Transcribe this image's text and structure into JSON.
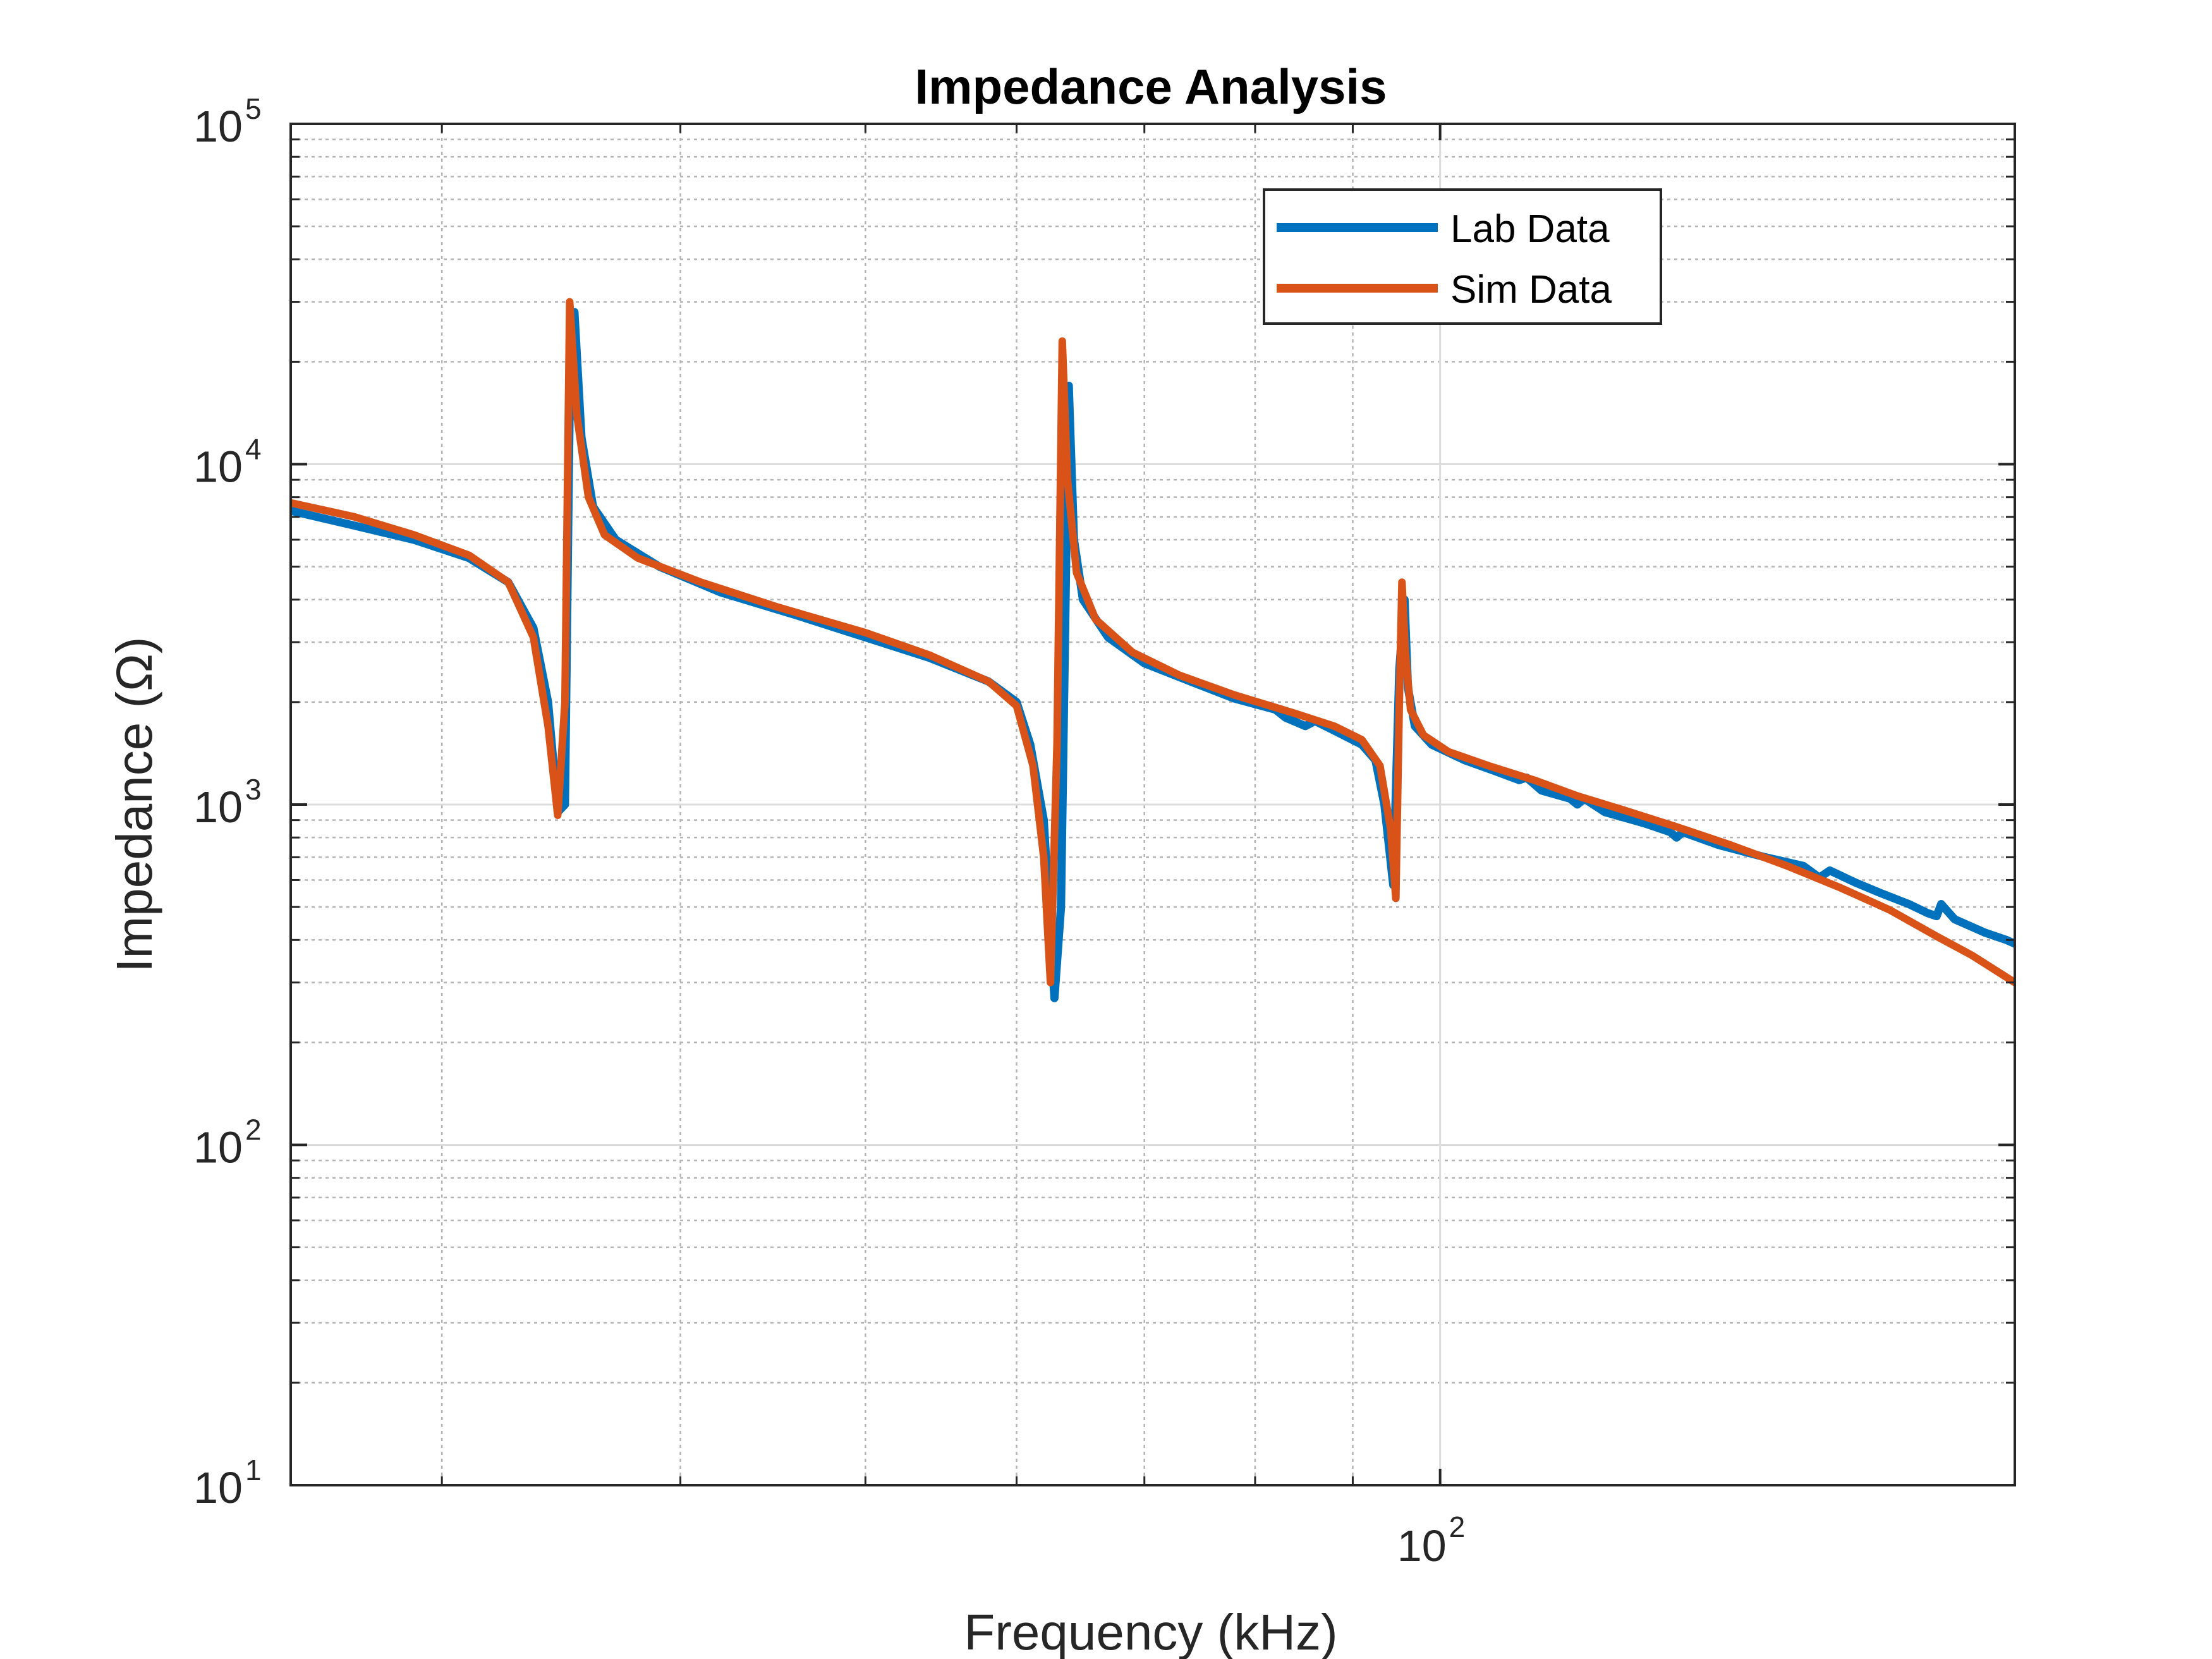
{
  "chart_data": {
    "type": "line",
    "title": "Impedance Analysis",
    "xlabel": "Frequency (kHz)",
    "ylabel": "Impedance (Ω)",
    "xscale": "log",
    "yscale": "log",
    "xlim": [
      25,
      200
    ],
    "ylim": [
      10,
      100000
    ],
    "grid": true,
    "minor_grid": true,
    "legend_position": "top-right",
    "x_ticks": [
      {
        "value": 100,
        "base": "10",
        "exp": "2"
      }
    ],
    "y_ticks": [
      {
        "value": 10,
        "base": "10",
        "exp": "1"
      },
      {
        "value": 100,
        "base": "10",
        "exp": "2"
      },
      {
        "value": 1000,
        "base": "10",
        "exp": "3"
      },
      {
        "value": 10000,
        "base": "10",
        "exp": "4"
      },
      {
        "value": 100000,
        "base": "10",
        "exp": "5"
      }
    ],
    "series": [
      {
        "name": "Lab Data",
        "color": "#0072BD",
        "points": [
          [
            25,
            7300
          ],
          [
            27,
            6600
          ],
          [
            29,
            6000
          ],
          [
            31,
            5300
          ],
          [
            32.5,
            4500
          ],
          [
            33.5,
            3300
          ],
          [
            34.1,
            2000
          ],
          [
            34.5,
            950
          ],
          [
            34.8,
            1000
          ],
          [
            35.0,
            15000
          ],
          [
            35.2,
            28000
          ],
          [
            35.5,
            12000
          ],
          [
            36,
            7500
          ],
          [
            37,
            6000
          ],
          [
            39,
            5000
          ],
          [
            42,
            4200
          ],
          [
            46,
            3600
          ],
          [
            50,
            3100
          ],
          [
            54,
            2700
          ],
          [
            58,
            2300
          ],
          [
            60,
            2000
          ],
          [
            61,
            1500
          ],
          [
            62,
            900
          ],
          [
            62.8,
            270
          ],
          [
            63.3,
            500
          ],
          [
            63.9,
            17000
          ],
          [
            64.3,
            6000
          ],
          [
            65,
            4000
          ],
          [
            67,
            3100
          ],
          [
            70,
            2600
          ],
          [
            74,
            2300
          ],
          [
            78,
            2050
          ],
          [
            82,
            1900
          ],
          [
            83,
            1800
          ],
          [
            85,
            1700
          ],
          [
            86,
            1760
          ],
          [
            88,
            1650
          ],
          [
            91,
            1500
          ],
          [
            92.5,
            1350
          ],
          [
            93.5,
            1000
          ],
          [
            94.5,
            580
          ],
          [
            95.2,
            2500
          ],
          [
            95.8,
            4000
          ],
          [
            96.2,
            2200
          ],
          [
            97,
            1700
          ],
          [
            99,
            1500
          ],
          [
            103,
            1350
          ],
          [
            107,
            1250
          ],
          [
            110,
            1180
          ],
          [
            111,
            1200
          ],
          [
            113,
            1100
          ],
          [
            117,
            1040
          ],
          [
            118,
            1000
          ],
          [
            119,
            1040
          ],
          [
            122,
            950
          ],
          [
            128,
            880
          ],
          [
            132,
            830
          ],
          [
            133,
            800
          ],
          [
            134,
            830
          ],
          [
            140,
            760
          ],
          [
            148,
            700
          ],
          [
            155,
            660
          ],
          [
            158,
            610
          ],
          [
            160,
            640
          ],
          [
            165,
            590
          ],
          [
            170,
            550
          ],
          [
            176,
            510
          ],
          [
            180,
            480
          ],
          [
            182,
            470
          ],
          [
            183,
            510
          ],
          [
            186,
            460
          ],
          [
            193,
            420
          ],
          [
            198,
            400
          ],
          [
            200,
            390
          ]
        ]
      },
      {
        "name": "Sim Data",
        "color": "#D95319",
        "points": [
          [
            25,
            7700
          ],
          [
            27,
            7000
          ],
          [
            29,
            6200
          ],
          [
            31,
            5400
          ],
          [
            32.5,
            4500
          ],
          [
            33.5,
            3100
          ],
          [
            34.1,
            1700
          ],
          [
            34.5,
            930
          ],
          [
            34.8,
            2000
          ],
          [
            35.0,
            30000
          ],
          [
            35.3,
            14000
          ],
          [
            35.8,
            8000
          ],
          [
            36.5,
            6200
          ],
          [
            38,
            5300
          ],
          [
            41,
            4500
          ],
          [
            45,
            3800
          ],
          [
            50,
            3200
          ],
          [
            54,
            2750
          ],
          [
            58,
            2300
          ],
          [
            60,
            1950
          ],
          [
            61.2,
            1300
          ],
          [
            62,
            700
          ],
          [
            62.5,
            300
          ],
          [
            63.0,
            1500
          ],
          [
            63.4,
            23000
          ],
          [
            63.8,
            9000
          ],
          [
            64.5,
            4800
          ],
          [
            66,
            3500
          ],
          [
            69,
            2800
          ],
          [
            73,
            2400
          ],
          [
            78,
            2100
          ],
          [
            84,
            1850
          ],
          [
            88,
            1700
          ],
          [
            91,
            1550
          ],
          [
            93,
            1300
          ],
          [
            94.2,
            850
          ],
          [
            94.8,
            530
          ],
          [
            95.2,
            2000
          ],
          [
            95.5,
            4500
          ],
          [
            95.9,
            2800
          ],
          [
            96.5,
            1900
          ],
          [
            98,
            1600
          ],
          [
            101,
            1430
          ],
          [
            106,
            1300
          ],
          [
            112,
            1180
          ],
          [
            118,
            1060
          ],
          [
            125,
            960
          ],
          [
            133,
            860
          ],
          [
            142,
            760
          ],
          [
            152,
            660
          ],
          [
            162,
            570
          ],
          [
            172,
            490
          ],
          [
            182,
            410
          ],
          [
            190,
            360
          ],
          [
            200,
            300
          ]
        ]
      }
    ]
  }
}
